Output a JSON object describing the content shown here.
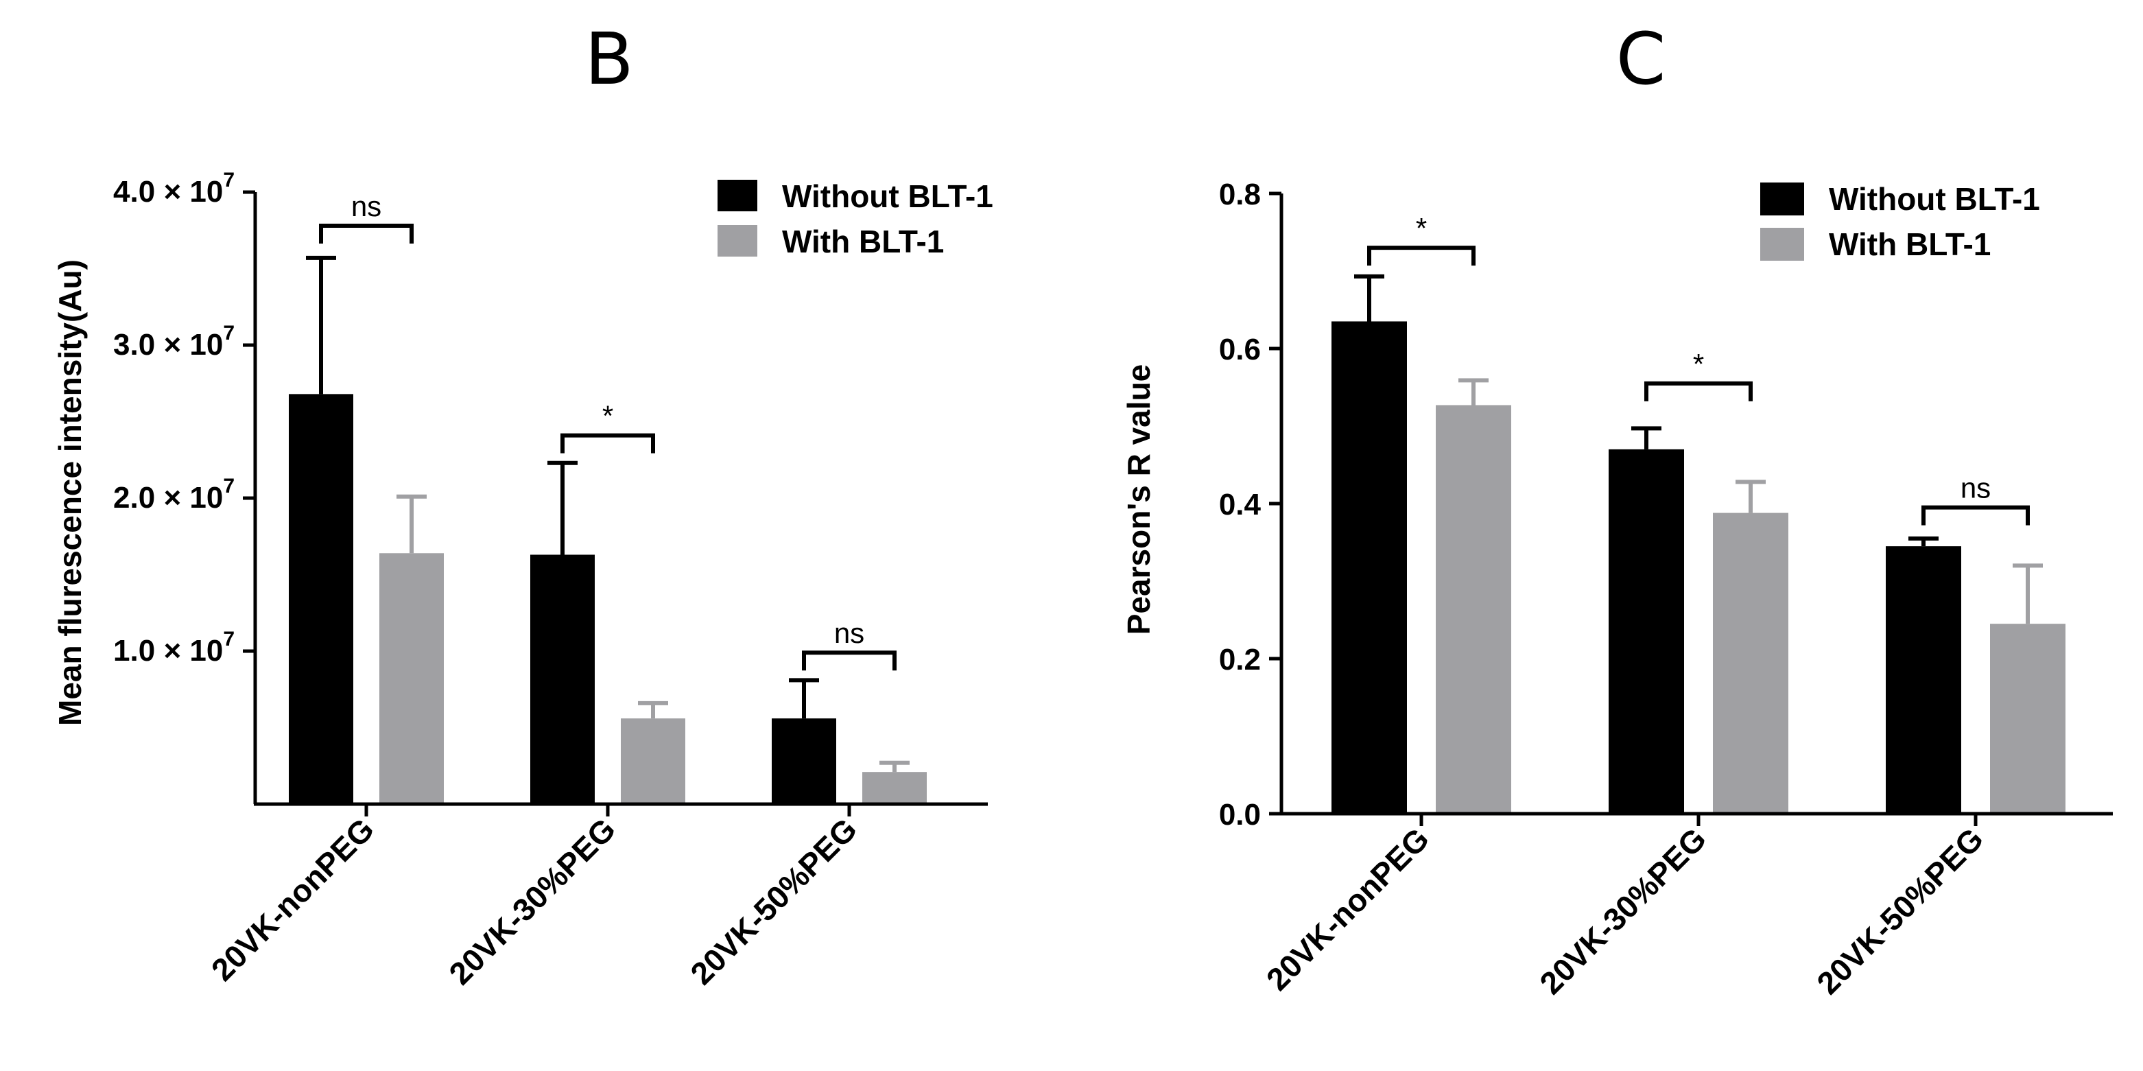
{
  "chart_data": [
    {
      "type": "bar",
      "panel_label": "B",
      "ylabel": "Mean flurescence intensity(Au)",
      "ylim": [
        0,
        40000000
      ],
      "yticks": [
        {
          "value": 10000000,
          "mantissa": "1.0",
          "times": "×",
          "base": "10",
          "exp": "7"
        },
        {
          "value": 20000000,
          "mantissa": "2.0",
          "times": "×",
          "base": "10",
          "exp": "7"
        },
        {
          "value": 30000000,
          "mantissa": "3.0",
          "times": "×",
          "base": "10",
          "exp": "7"
        },
        {
          "value": 40000000,
          "mantissa": "4.0",
          "times": "×",
          "base": "10",
          "exp": "7"
        }
      ],
      "categories": [
        "20VK-nonPEG",
        "20VK-30%PEG",
        "20VK-50%PEG"
      ],
      "series": [
        {
          "name": "Without BLT-1",
          "color": "#000000",
          "values": [
            26800000,
            16300000,
            5600000
          ],
          "errors": [
            8900000,
            6000000,
            2500000
          ]
        },
        {
          "name": "With BLT-1",
          "color": "#a0a0a3",
          "values": [
            16400000,
            5600000,
            2100000
          ],
          "errors": [
            3700000,
            1000000,
            600000
          ]
        }
      ],
      "significance": [
        {
          "category_index": 0,
          "label": "ns",
          "value": 37800000
        },
        {
          "category_index": 1,
          "label": "*",
          "value": 24100000
        },
        {
          "category_index": 2,
          "label": "ns",
          "value": 9900000
        }
      ],
      "legend": {
        "position": "top-right"
      }
    },
    {
      "type": "bar",
      "panel_label": "C",
      "ylabel": "Pearson's R value",
      "ylim": [
        0,
        0.8
      ],
      "yticks": [
        {
          "value": 0.0,
          "text": "0.0"
        },
        {
          "value": 0.2,
          "text": "0.2"
        },
        {
          "value": 0.4,
          "text": "0.4"
        },
        {
          "value": 0.6,
          "text": "0.6"
        },
        {
          "value": 0.8,
          "text": "0.8"
        }
      ],
      "categories": [
        "20VK-nonPEG",
        "20VK-30%PEG",
        "20VK-50%PEG"
      ],
      "series": [
        {
          "name": "Without BLT-1",
          "color": "#000000",
          "values": [
            0.635,
            0.47,
            0.345
          ],
          "errors": [
            0.058,
            0.027,
            0.01
          ]
        },
        {
          "name": "With BLT-1",
          "color": "#a0a0a3",
          "values": [
            0.527,
            0.388,
            0.245
          ],
          "errors": [
            0.032,
            0.04,
            0.075
          ]
        }
      ],
      "significance": [
        {
          "category_index": 0,
          "label": "*",
          "value": 0.73
        },
        {
          "category_index": 1,
          "label": "*",
          "value": 0.555
        },
        {
          "category_index": 2,
          "label": "ns",
          "value": 0.395
        }
      ],
      "legend": {
        "position": "top-right"
      }
    }
  ]
}
